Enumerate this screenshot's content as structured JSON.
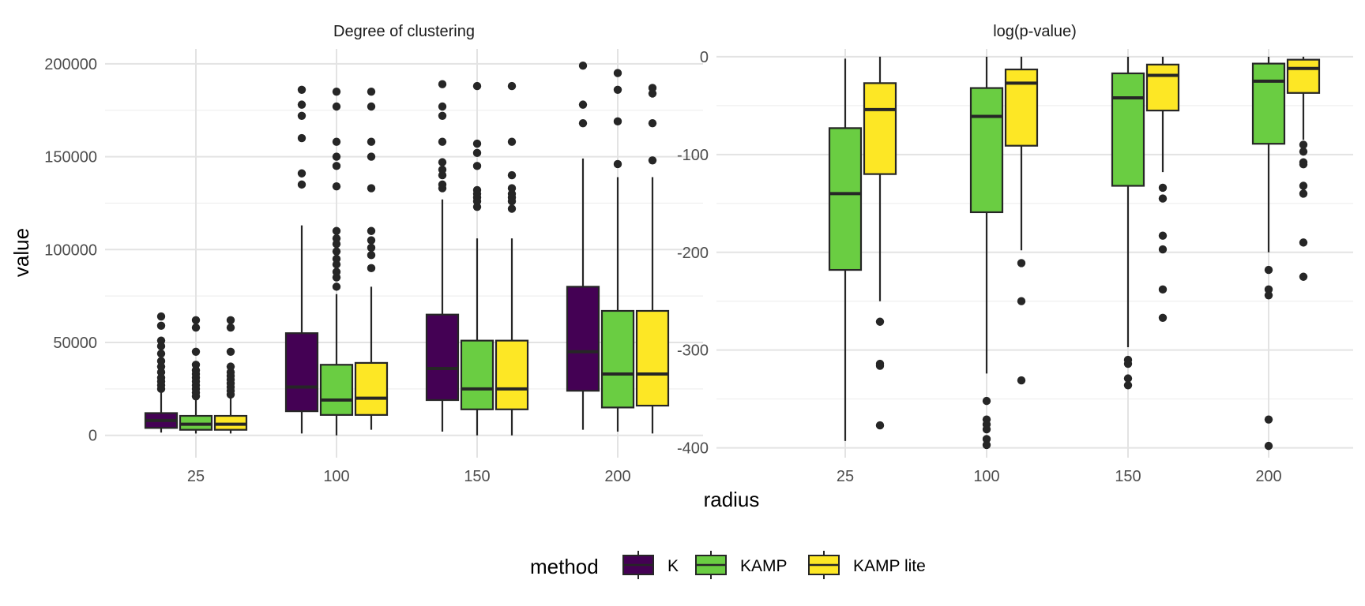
{
  "chart_data": {
    "type": "boxplot",
    "xlabel": "radius",
    "ylabel": "value",
    "categories": [
      "25",
      "100",
      "150",
      "200"
    ],
    "legend": {
      "title": "method",
      "position": "bottom",
      "entries": [
        {
          "name": "K",
          "color": "#440154"
        },
        {
          "name": "KAMP",
          "color": "#6ACD42"
        },
        {
          "name": "KAMP lite",
          "color": "#FDE725"
        }
      ]
    },
    "grid": true,
    "panels": [
      {
        "title": "Degree of clustering",
        "ylim": [
          -12000,
          208000
        ],
        "yticks": [
          0,
          50000,
          100000,
          150000,
          200000
        ],
        "ytick_labels": [
          "0",
          "50000",
          "100000",
          "150000",
          "200000"
        ],
        "groups": [
          {
            "category": "25",
            "boxes": [
              {
                "method": "K",
                "whisker_low": 1500,
                "q1": 4000,
                "median": 8000,
                "q3": 12000,
                "whisker_high": 23000,
                "outliers": [
                  25000,
                  27000,
                  29000,
                  31000,
                  34000,
                  37000,
                  40000,
                  44000,
                  48000,
                  51000,
                  59000,
                  64000
                ]
              },
              {
                "method": "KAMP",
                "whisker_low": 1000,
                "q1": 3000,
                "median": 6000,
                "q3": 10500,
                "whisker_high": 20000,
                "outliers": [
                  21000,
                  23000,
                  25000,
                  27000,
                  29000,
                  31000,
                  33000,
                  35000,
                  38000,
                  45000,
                  58000,
                  62000
                ]
              },
              {
                "method": "KAMP lite",
                "whisker_low": 1000,
                "q1": 3000,
                "median": 6000,
                "q3": 10500,
                "whisker_high": 20000,
                "outliers": [
                  22000,
                  24000,
                  26000,
                  28000,
                  30000,
                  32000,
                  34000,
                  37000,
                  45000,
                  58000,
                  62000
                ]
              }
            ]
          },
          {
            "category": "100",
            "boxes": [
              {
                "method": "K",
                "whisker_low": 1000,
                "q1": 13000,
                "median": 26000,
                "q3": 55000,
                "whisker_high": 113000,
                "outliers": [
                  135000,
                  141000,
                  160000,
                  172000,
                  178000,
                  186000
                ]
              },
              {
                "method": "KAMP",
                "whisker_low": 0,
                "q1": 11000,
                "median": 19000,
                "q3": 38000,
                "whisker_high": 76000,
                "outliers": [
                  80000,
                  85000,
                  88000,
                  92000,
                  95000,
                  99000,
                  103000,
                  106000,
                  110000,
                  134000,
                  145000,
                  150000,
                  158000,
                  177000,
                  185000
                ]
              },
              {
                "method": "KAMP lite",
                "whisker_low": 3000,
                "q1": 11000,
                "median": 20000,
                "q3": 39000,
                "whisker_high": 80000,
                "outliers": [
                  90000,
                  97000,
                  101000,
                  105000,
                  110000,
                  133000,
                  150000,
                  158000,
                  177000,
                  185000
                ]
              }
            ]
          },
          {
            "category": "150",
            "boxes": [
              {
                "method": "K",
                "whisker_low": 2000,
                "q1": 19000,
                "median": 36000,
                "q3": 65000,
                "whisker_high": 127000,
                "outliers": [
                  133000,
                  135000,
                  140000,
                  143000,
                  147000,
                  158000,
                  172000,
                  177000,
                  189000
                ]
              },
              {
                "method": "KAMP",
                "whisker_low": 0,
                "q1": 14000,
                "median": 25000,
                "q3": 51000,
                "whisker_high": 106000,
                "outliers": [
                  123000,
                  126000,
                  128000,
                  130000,
                  132000,
                  145000,
                  152000,
                  157000,
                  188000
                ]
              },
              {
                "method": "KAMP lite",
                "whisker_low": 0,
                "q1": 14000,
                "median": 25000,
                "q3": 51000,
                "whisker_high": 106000,
                "outliers": [
                  122000,
                  126000,
                  128000,
                  130000,
                  133000,
                  140000,
                  158000,
                  188000
                ]
              }
            ]
          },
          {
            "category": "200",
            "boxes": [
              {
                "method": "K",
                "whisker_low": 3000,
                "q1": 24000,
                "median": 45000,
                "q3": 80000,
                "whisker_high": 149000,
                "outliers": [
                  168000,
                  178000,
                  199000
                ]
              },
              {
                "method": "KAMP",
                "whisker_low": 2000,
                "q1": 15000,
                "median": 33000,
                "q3": 67000,
                "whisker_high": 139000,
                "outliers": [
                  146000,
                  169000,
                  186000,
                  195000
                ]
              },
              {
                "method": "KAMP lite",
                "whisker_low": 1000,
                "q1": 16000,
                "median": 33000,
                "q3": 67000,
                "whisker_high": 139000,
                "outliers": [
                  148000,
                  168000,
                  184000,
                  187000
                ]
              }
            ]
          }
        ]
      },
      {
        "title": "log(p-value)",
        "ylim": [
          -410,
          8
        ],
        "yticks": [
          -400,
          -300,
          -200,
          -100,
          0
        ],
        "ytick_labels": [
          "-400",
          "-300",
          "-200",
          "-100",
          "0"
        ],
        "groups": [
          {
            "category": "25",
            "boxes": [
              {
                "method": "KAMP",
                "whisker_low": -393,
                "q1": -218,
                "median": -140,
                "q3": -73,
                "whisker_high": -2,
                "outliers": []
              },
              {
                "method": "KAMP lite",
                "whisker_low": -250,
                "q1": -120,
                "median": -54,
                "q3": -27,
                "whisker_high": 0,
                "outliers": [
                  -271,
                  -314,
                  -316,
                  -377
                ]
              }
            ]
          },
          {
            "category": "100",
            "boxes": [
              {
                "method": "KAMP",
                "whisker_low": -324,
                "q1": -159,
                "median": -61,
                "q3": -32,
                "whisker_high": 0,
                "outliers": [
                  -352,
                  -371,
                  -376,
                  -381,
                  -391,
                  -397
                ]
              },
              {
                "method": "KAMP lite",
                "whisker_low": -198,
                "q1": -91,
                "median": -27,
                "q3": -13,
                "whisker_high": 0,
                "outliers": [
                  -211,
                  -250,
                  -331
                ]
              }
            ]
          },
          {
            "category": "150",
            "boxes": [
              {
                "method": "KAMP",
                "whisker_low": -297,
                "q1": -132,
                "median": -42,
                "q3": -17,
                "whisker_high": 0,
                "outliers": [
                  -310,
                  -314,
                  -329,
                  -336
                ]
              },
              {
                "method": "KAMP lite",
                "whisker_low": -118,
                "q1": -55,
                "median": -19,
                "q3": -8,
                "whisker_high": 0,
                "outliers": [
                  -134,
                  -145,
                  -183,
                  -197,
                  -238,
                  -267
                ]
              }
            ]
          },
          {
            "category": "200",
            "boxes": [
              {
                "method": "KAMP",
                "whisker_low": -200,
                "q1": -89,
                "median": -25,
                "q3": -7,
                "whisker_high": 0,
                "outliers": [
                  -218,
                  -238,
                  -244,
                  -371,
                  -398
                ]
              },
              {
                "method": "KAMP lite",
                "whisker_low": -85,
                "q1": -37,
                "median": -12,
                "q3": -3,
                "whisker_high": 0,
                "outliers": [
                  -90,
                  -97,
                  -108,
                  -110,
                  -132,
                  -140,
                  -190,
                  -225
                ]
              }
            ]
          }
        ]
      }
    ]
  }
}
